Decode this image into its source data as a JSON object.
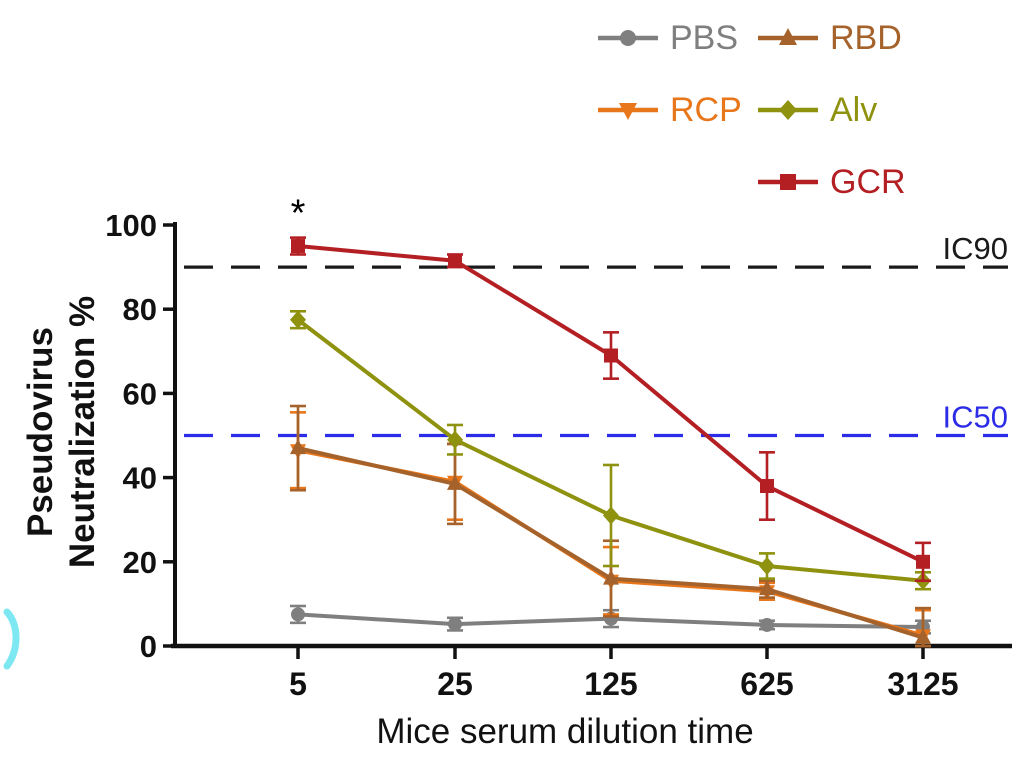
{
  "figure": {
    "background": "#ffffff"
  },
  "chart_data": {
    "type": "line",
    "title": "",
    "xlabel": "Mice serum dilution time",
    "ylabel": "Pseudovirus Neutralization %",
    "ylabel_lines": [
      "Pseudovirus",
      "Neutralization %"
    ],
    "x_categories": [
      "5",
      "25",
      "125",
      "625",
      "3125"
    ],
    "y_ticks": [
      0,
      20,
      40,
      60,
      80,
      100
    ],
    "ylim": [
      0,
      100
    ],
    "grid": false,
    "legend_position": "top-right",
    "series": [
      {
        "name": "PBS",
        "color": "#7F7F7F",
        "marker": "circle",
        "values": [
          7.5,
          5.2,
          6.5,
          5.0,
          4.5
        ],
        "errors": [
          2.0,
          1.5,
          2.0,
          1.0,
          1.5
        ]
      },
      {
        "name": "RCP",
        "color": "#E8761A",
        "marker": "triangle-down",
        "values": [
          46.5,
          39.0,
          15.5,
          13.0,
          2.5
        ],
        "errors": [
          9.0,
          9.0,
          8.0,
          2.0,
          6.0
        ]
      },
      {
        "name": "RBD",
        "color": "#A5622B",
        "marker": "triangle-up",
        "values": [
          47.0,
          38.5,
          16.0,
          13.5,
          2.0
        ],
        "errors": [
          10.0,
          9.5,
          9.0,
          2.0,
          7.0
        ]
      },
      {
        "name": "Alv",
        "color": "#8E920E",
        "marker": "diamond",
        "values": [
          77.5,
          49.0,
          31.0,
          19.0,
          15.5
        ],
        "errors": [
          2.0,
          3.5,
          12.0,
          3.0,
          2.0
        ]
      },
      {
        "name": "GCR",
        "color": "#B41F24",
        "marker": "square",
        "values": [
          95.0,
          91.5,
          69.0,
          38.0,
          20.0
        ],
        "errors": [
          2.0,
          1.5,
          5.5,
          8.0,
          4.5
        ]
      }
    ],
    "ref_lines": [
      {
        "label": "IC90",
        "value": 90,
        "color": "#1A1A1A"
      },
      {
        "label": "IC50",
        "value": 50,
        "color": "#2B2BE8"
      }
    ],
    "annotations": [
      {
        "text": "*",
        "x_category": "5",
        "series": "GCR",
        "color": "#000000"
      }
    ]
  },
  "legend": {
    "items": [
      {
        "name": "PBS",
        "color": "#7F7F7F",
        "marker": "circle"
      },
      {
        "name": "RBD",
        "color": "#A5622B",
        "marker": "triangle-up"
      },
      {
        "name": "RCP",
        "color": "#E8761A",
        "marker": "triangle-down"
      },
      {
        "name": "Alv",
        "color": "#8E920E",
        "marker": "diamond"
      },
      {
        "name": "GCR",
        "color": "#B41F24",
        "marker": "square"
      }
    ]
  }
}
